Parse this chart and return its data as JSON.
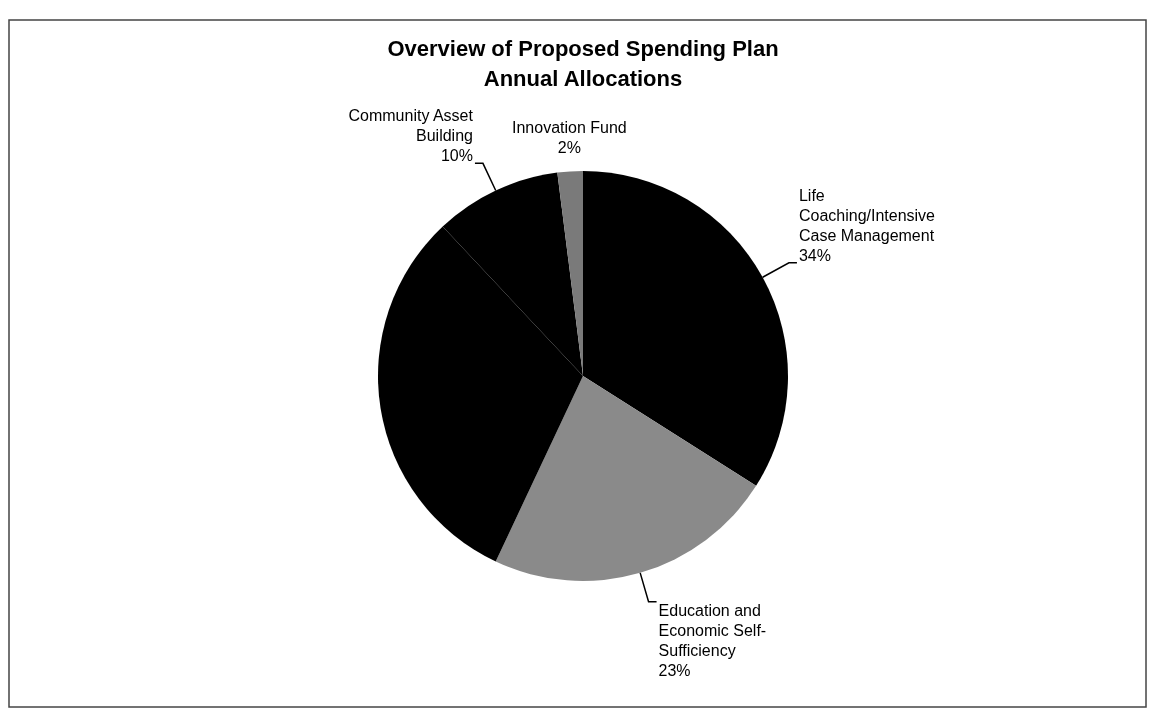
{
  "chart_data": {
    "type": "pie",
    "title": "Overview of Proposed Spending Plan\nAnnual Allocations",
    "categories": [
      "Life Coaching/Intensive Case Management",
      "Education and Economic Self-Sufficiency",
      null,
      "Community Asset Building",
      "Innovation Fund"
    ],
    "values": [
      34,
      23,
      31,
      10,
      2
    ],
    "value_labels": [
      "34%",
      "23%",
      null,
      "10%",
      "2%"
    ],
    "colors": [
      "#000000",
      "#8a8a8a",
      "#000000",
      "#000000",
      "#7a7a7a"
    ]
  }
}
